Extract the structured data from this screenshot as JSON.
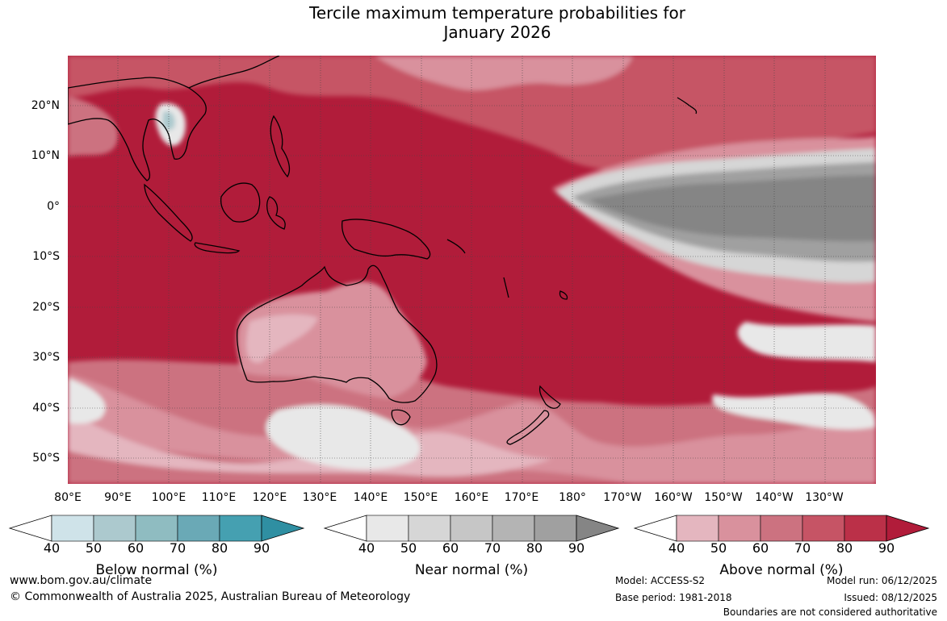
{
  "title": {
    "line1": "Tercile maximum temperature probabilities for",
    "line2": "January 2026"
  },
  "map": {
    "latitude_labels": [
      "20°N",
      "10°N",
      "0°",
      "10°S",
      "20°S",
      "30°S",
      "40°S",
      "50°S"
    ],
    "longitude_labels": [
      "80°E",
      "90°E",
      "100°E",
      "110°E",
      "120°E",
      "130°E",
      "140°E",
      "150°E",
      "160°E",
      "170°E",
      "180°",
      "170°W",
      "160°W",
      "150°W",
      "140°W",
      "130°W"
    ]
  },
  "colorbars": [
    {
      "title": "Below normal (%)",
      "ticks": [
        "40",
        "50",
        "60",
        "70",
        "80",
        "90"
      ],
      "colors": [
        "#cfe3e9",
        "#acc9ce",
        "#8fbcc1",
        "#6aa9b6",
        "#45a0b1",
        "#2f8fa2"
      ]
    },
    {
      "title": "Near normal (%)",
      "ticks": [
        "40",
        "50",
        "60",
        "70",
        "80",
        "90"
      ],
      "colors": [
        "#e8e8e8",
        "#d6d6d6",
        "#c6c6c6",
        "#b4b4b4",
        "#a0a0a0",
        "#858585"
      ]
    },
    {
      "title": "Above normal (%)",
      "ticks": [
        "40",
        "50",
        "60",
        "70",
        "80",
        "90"
      ],
      "colors": [
        "#e4b6bf",
        "#d9919d",
        "#cc7280",
        "#c65465",
        "#bb3048",
        "#b11c3a"
      ]
    }
  ],
  "footer": {
    "website": "www.bom.gov.au/climate",
    "copyright": "© Commonwealth of Australia 2025, Australian Bureau of Meteorology",
    "model": "Model: ACCESS-S2",
    "base_period": "Base period: 1981-2018",
    "model_run": "Model run: 06/12/2025",
    "issued": "Issued: 08/12/2025",
    "disclaimer": "Boundaries are not considered authoritative"
  }
}
